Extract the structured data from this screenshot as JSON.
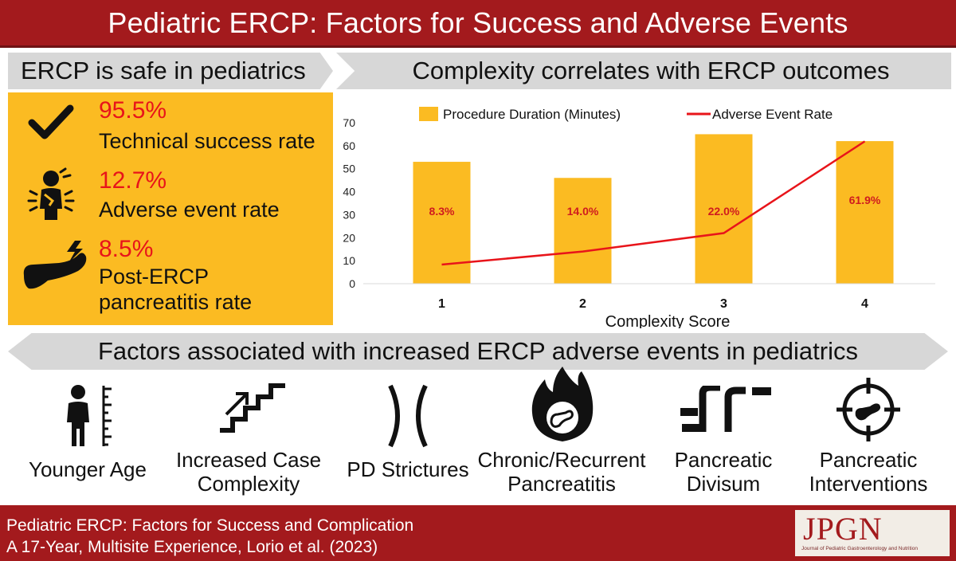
{
  "header": {
    "title": "Pediatric ERCP: Factors for Success and Adverse Events"
  },
  "safe_section": {
    "title": "ERCP is safe in pediatrics",
    "stats": [
      {
        "value": "95.5%",
        "label": "Technical success rate",
        "icon": "checkmark-icon"
      },
      {
        "value": "12.7%",
        "label": "Adverse event rate",
        "icon": "pain-person-icon"
      },
      {
        "value": "8.5%",
        "label_line1": "Post-ERCP",
        "label_line2": "pancreatitis rate",
        "icon": "pancreas-lightning-icon"
      }
    ]
  },
  "complexity_section": {
    "title": "Complexity correlates with ERCP outcomes"
  },
  "chart_data": {
    "type": "bar",
    "categories": [
      "1",
      "2",
      "3",
      "4"
    ],
    "xlabel": "Complexity Score",
    "ylabel": "",
    "ylim": [
      0,
      70
    ],
    "yticks": [
      0,
      10,
      20,
      30,
      40,
      50,
      60,
      70
    ],
    "legend_position": "top",
    "series": [
      {
        "name": "Procedure Duration (Minutes)",
        "type": "bar",
        "color": "#fbbb22",
        "values": [
          53,
          46,
          65,
          62
        ]
      },
      {
        "name": "Adverse Event Rate",
        "type": "line",
        "color": "#e8141a",
        "values": [
          8.3,
          14.0,
          22.0,
          61.9
        ],
        "labels": [
          "8.3%",
          "14.0%",
          "22.0%",
          "61.9%"
        ]
      }
    ],
    "label_color": "#cf1b1f"
  },
  "factors_section": {
    "title": "Factors associated with increased ERCP adverse events in pediatrics",
    "items": [
      {
        "line1": "Younger Age",
        "line2": "",
        "icon": "child-height-icon"
      },
      {
        "line1": "Increased Case",
        "line2": "Complexity",
        "icon": "stairs-arrow-icon"
      },
      {
        "line1": "PD Strictures",
        "line2": "",
        "icon": "stricture-icon"
      },
      {
        "line1": "Chronic/Recurrent",
        "line2": "Pancreatitis",
        "icon": "flame-pancreas-icon"
      },
      {
        "line1": "Pancreatic",
        "line2": "Divisum",
        "icon": "split-pipe-icon"
      },
      {
        "line1": "Pancreatic",
        "line2": "Interventions",
        "icon": "target-pancreas-icon"
      }
    ]
  },
  "footer": {
    "citation_line1": "Pediatric ERCP: Factors for Success and Complication",
    "citation_line2": "A 17-Year, Multisite Experience, Lorio et al. (2023)",
    "journal_logo": "JPGN",
    "journal_name": "Journal of Pediatric Gastroenterology and Nutrition"
  },
  "colors": {
    "brand_red": "#a31a1d",
    "accent_yellow": "#fbbb22",
    "stat_red": "#e8141a",
    "ribbon_gray": "#d7d7d7"
  }
}
